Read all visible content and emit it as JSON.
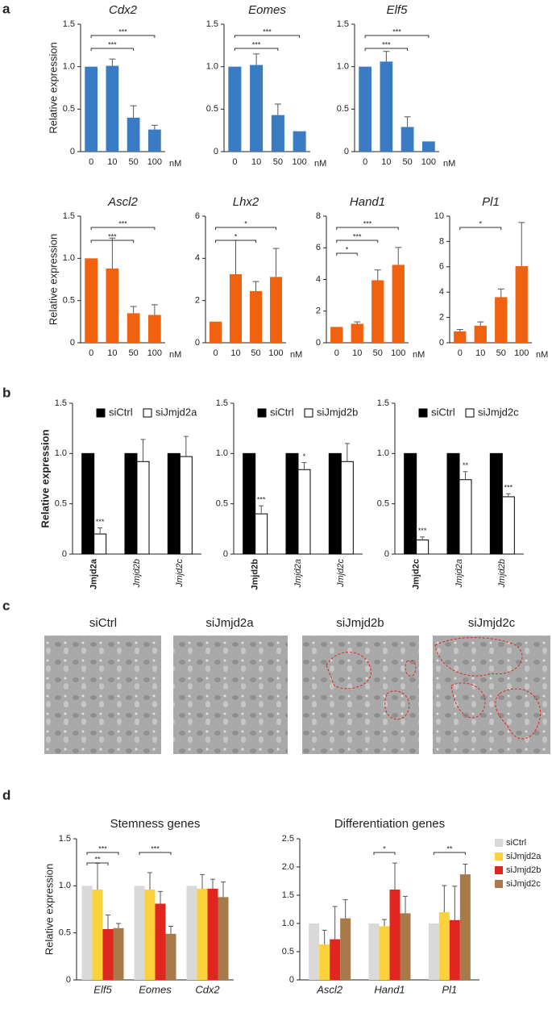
{
  "panels": [
    "a",
    "b",
    "c",
    "d"
  ],
  "images": [
    "siCtrl",
    "siJmjd2a",
    "siJmjd2b",
    "siJmjd2c"
  ],
  "chart_data": [
    {
      "type": "bar",
      "title": "Cdx2",
      "ylabel": "Relative expression",
      "unit": "nM",
      "color": "#3a7cc4",
      "categories": [
        "0",
        "10",
        "50",
        "100"
      ],
      "values": [
        1.0,
        1.01,
        0.4,
        0.26
      ],
      "errors": [
        0,
        0.08,
        0.14,
        0.05
      ],
      "ylim": [
        0,
        1.5
      ],
      "yticks": [
        0,
        0.5,
        {
          "value": 1,
          "label": "1.0"
        },
        1.5
      ],
      "significance": [
        {
          "from": 0,
          "to": 3,
          "label": "***"
        },
        {
          "from": 0,
          "to": 2,
          "label": "***"
        }
      ]
    },
    {
      "type": "bar",
      "title": "Eomes",
      "unit": "nM",
      "color": "#3a7cc4",
      "categories": [
        "0",
        "10",
        "50",
        "100"
      ],
      "values": [
        1.0,
        1.02,
        0.43,
        0.24
      ],
      "errors": [
        0,
        0.13,
        0.13,
        0
      ],
      "ylim": [
        0,
        1.5
      ],
      "yticks": [
        0,
        0.5,
        {
          "value": 1,
          "label": "1.0"
        },
        1.5
      ],
      "significance": [
        {
          "from": 0,
          "to": 3,
          "label": "***"
        },
        {
          "from": 0,
          "to": 2,
          "label": "***"
        }
      ]
    },
    {
      "type": "bar",
      "title": "Elf5",
      "unit": "nM",
      "color": "#3a7cc4",
      "categories": [
        "0",
        "10",
        "50",
        "100"
      ],
      "values": [
        1.0,
        1.06,
        0.29,
        0.12
      ],
      "errors": [
        0,
        0.12,
        0.12,
        0
      ],
      "ylim": [
        0,
        1.5
      ],
      "yticks": [
        0,
        0.5,
        {
          "value": 1,
          "label": "1.0"
        },
        1.5
      ],
      "significance": [
        {
          "from": 0,
          "to": 3,
          "label": "***"
        },
        {
          "from": 0,
          "to": 2,
          "label": "***"
        }
      ]
    },
    {
      "type": "bar",
      "title": "Ascl2",
      "ylabel": "Relative expression",
      "unit": "nM",
      "color": "#f0620f",
      "categories": [
        "0",
        "10",
        "50",
        "100"
      ],
      "values": [
        1.0,
        0.88,
        0.35,
        0.33
      ],
      "errors": [
        0,
        0.36,
        0.08,
        0.12
      ],
      "ylim": [
        0,
        1.5
      ],
      "yticks": [
        0,
        0.5,
        {
          "value": 1,
          "label": "1.0"
        },
        1.5
      ],
      "significance": [
        {
          "from": 0,
          "to": 3,
          "label": "***"
        },
        {
          "from": 0,
          "to": 2,
          "label": "***"
        }
      ]
    },
    {
      "type": "bar",
      "title": "Lhx2",
      "unit": "nM",
      "color": "#f0620f",
      "categories": [
        "0",
        "10",
        "50",
        "100"
      ],
      "values": [
        1.0,
        3.25,
        2.45,
        3.12
      ],
      "errors": [
        0,
        1.6,
        0.45,
        1.35
      ],
      "ylim": [
        0,
        6
      ],
      "yticks": [
        0,
        2,
        4,
        6
      ],
      "significance": [
        {
          "from": 0,
          "to": 3,
          "label": "*"
        },
        {
          "from": 0,
          "to": 2,
          "label": "*"
        }
      ]
    },
    {
      "type": "bar",
      "title": "Hand1",
      "unit": "nM",
      "color": "#f0620f",
      "categories": [
        "0",
        "10",
        "50",
        "100"
      ],
      "values": [
        1.0,
        1.2,
        3.95,
        4.92
      ],
      "errors": [
        0,
        0.12,
        0.65,
        1.1
      ],
      "ylim": [
        0,
        8
      ],
      "yticks": [
        0,
        2,
        4,
        6,
        8
      ],
      "significance": [
        {
          "from": 0,
          "to": 3,
          "label": "***"
        },
        {
          "from": 0,
          "to": 2,
          "label": "***"
        },
        {
          "from": 0,
          "to": 1,
          "label": "*"
        }
      ]
    },
    {
      "type": "bar",
      "title": "Pl1",
      "unit": "nM",
      "color": "#f0620f",
      "categories": [
        "0",
        "10",
        "50",
        "100"
      ],
      "values": [
        0.9,
        1.35,
        3.6,
        6.05
      ],
      "errors": [
        0.15,
        0.3,
        0.65,
        3.45
      ],
      "ylim": [
        0,
        10
      ],
      "yticks": [
        0,
        2,
        4,
        6,
        8,
        10
      ],
      "significance": [
        {
          "from": 0,
          "to": 2,
          "label": "*"
        }
      ]
    },
    {
      "type": "grouped_bar",
      "ylabel": "Relative expression",
      "edgecolor": "#000000",
      "categories": [
        "Jmjd2a",
        "Jmjd2b",
        "Jmjd2c"
      ],
      "series": [
        {
          "name": "siCtrl",
          "color": "#000000",
          "values": [
            1,
            1,
            1
          ]
        },
        {
          "name": "siJmjd2a",
          "color": "#ffffff",
          "values": [
            0.2,
            0.92,
            0.97
          ],
          "errors": [
            0.06,
            0.22,
            0.2
          ],
          "stars": [
            "***",
            null,
            null
          ]
        }
      ],
      "ylim": [
        0,
        1.5
      ],
      "yticks": [
        0,
        0.5,
        {
          "value": 1,
          "label": "1.0"
        },
        1.5
      ]
    },
    {
      "type": "grouped_bar",
      "edgecolor": "#000000",
      "categories": [
        "Jmjd2b",
        "Jmjd2a",
        "Jmjd2c"
      ],
      "series": [
        {
          "name": "siCtrl",
          "color": "#000000",
          "values": [
            1,
            1,
            1
          ]
        },
        {
          "name": "siJmjd2b",
          "color": "#ffffff",
          "values": [
            0.4,
            0.84,
            0.92
          ],
          "errors": [
            0.08,
            0.07,
            0.18
          ],
          "stars": [
            "***",
            "*",
            null
          ]
        }
      ],
      "ylim": [
        0,
        1.5
      ],
      "yticks": [
        0,
        0.5,
        {
          "value": 1,
          "label": "1.0"
        },
        1.5
      ]
    },
    {
      "type": "grouped_bar",
      "edgecolor": "#000000",
      "categories": [
        "Jmjd2c",
        "Jmjd2a",
        "Jmjd2b"
      ],
      "series": [
        {
          "name": "siCtrl",
          "color": "#000000",
          "values": [
            1,
            1,
            1
          ]
        },
        {
          "name": "siJmjd2c",
          "color": "#ffffff",
          "values": [
            0.14,
            0.74,
            0.57
          ],
          "errors": [
            0.03,
            0.08,
            0.03
          ],
          "stars": [
            "***",
            "**",
            "***"
          ]
        }
      ],
      "ylim": [
        0,
        1.5
      ],
      "yticks": [
        0,
        0.5,
        {
          "value": 1,
          "label": "1.0"
        },
        1.5
      ]
    },
    {
      "type": "grouped_bar",
      "title": "Stemness genes",
      "ylabel": "Relative expression",
      "categories": [
        "Elf5",
        "Eomes",
        "Cdx2"
      ],
      "series": [
        {
          "name": "siCtrl",
          "color": "#d9d9d9",
          "values": [
            1,
            1,
            1
          ]
        },
        {
          "name": "siJmjd2a",
          "color": "#fcd23a",
          "values": [
            0.96,
            0.96,
            0.97
          ],
          "errors": [
            0.28,
            0.18,
            0.15
          ]
        },
        {
          "name": "siJmjd2b",
          "color": "#e0261f",
          "values": [
            0.54,
            0.81,
            0.97
          ],
          "errors": [
            0.15,
            0.13,
            0.1
          ]
        },
        {
          "name": "siJmjd2c",
          "color": "#a87a4a",
          "values": [
            0.55,
            0.49,
            0.88
          ],
          "errors": [
            0.05,
            0.08,
            0.16
          ]
        }
      ],
      "ylim": [
        0,
        1.5
      ],
      "yticks": [
        0,
        0.5,
        {
          "value": 1,
          "label": "1.0"
        },
        1.5
      ],
      "significance": [
        {
          "category": 0,
          "from": 0,
          "to": 3,
          "label": "***"
        },
        {
          "category": 0,
          "from": 0,
          "to": 2,
          "label": "**"
        },
        {
          "category": 1,
          "from": 0,
          "to": 3,
          "label": "***"
        }
      ]
    },
    {
      "type": "grouped_bar",
      "title": "Differentiation genes",
      "legend": "right",
      "categories": [
        "Ascl2",
        "Hand1",
        "Pl1"
      ],
      "series": [
        {
          "name": "siCtrl",
          "color": "#d9d9d9",
          "values": [
            1,
            1,
            1
          ]
        },
        {
          "name": "siJmjd2a",
          "color": "#fcd23a",
          "values": [
            0.63,
            0.95,
            1.2
          ],
          "errors": [
            0.25,
            0.12,
            0.47
          ]
        },
        {
          "name": "siJmjd2b",
          "color": "#e0261f",
          "values": [
            0.72,
            1.6,
            1.06
          ],
          "errors": [
            0.58,
            0.47,
            0.6
          ]
        },
        {
          "name": "siJmjd2c",
          "color": "#a87a4a",
          "values": [
            1.09,
            1.18,
            1.87
          ],
          "errors": [
            0.33,
            0.3,
            0.18
          ]
        }
      ],
      "ylim": [
        0,
        2.5
      ],
      "yticks": [
        0,
        0.5,
        {
          "value": 1,
          "label": "1.0"
        },
        1.5,
        {
          "value": 2,
          "label": "2.0"
        },
        2.5
      ],
      "significance": [
        {
          "category": 1,
          "from": 0,
          "to": 2,
          "label": "*"
        },
        {
          "category": 2,
          "from": 0,
          "to": 3,
          "label": "**"
        }
      ]
    }
  ]
}
